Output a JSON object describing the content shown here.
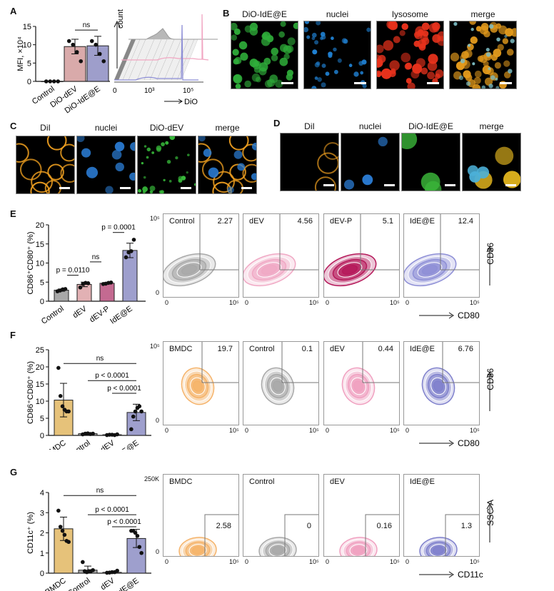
{
  "panels": {
    "A": {
      "letter": "A",
      "bar_chart": {
        "ylabel": "MFI, ×10⁴",
        "yticks": [
          "0",
          "5",
          "10",
          "15"
        ],
        "categories": [
          "Control",
          "DiO-dEV",
          "DiO-IdE@E"
        ],
        "sig": [
          "ns"
        ]
      },
      "histogram": {
        "ylabel": "count",
        "xlabel": "DiO",
        "xticks": [
          "0",
          "10³",
          "10⁵"
        ]
      }
    },
    "B": {
      "letter": "B",
      "titles": [
        "DiO-IdE@E",
        "nuclei",
        "lysosome",
        "merge"
      ]
    },
    "C": {
      "letter": "C",
      "titles": [
        "DiI",
        "nuclei",
        "DiO-dEV",
        "merge"
      ]
    },
    "D": {
      "letter": "D",
      "titles": [
        "DiI",
        "nuclei",
        "DiO-IdE@E",
        "merge"
      ]
    },
    "E": {
      "letter": "E",
      "ylabel": "CD86⁺CD80⁺ (%)",
      "yticks": [
        "0",
        "5",
        "10",
        "15",
        "20"
      ],
      "categories": [
        "Control",
        "dEV",
        "dEV-P",
        "IdE@E"
      ],
      "sig": [
        "p = 0.0110",
        "ns",
        "p = 0.0001"
      ],
      "flow": {
        "yaxis": "CD86",
        "xaxis": "CD80",
        "ytop": "10⁵",
        "ybottom": "0",
        "xleft": "0",
        "xright": "10⁵",
        "plots": [
          {
            "name": "Control",
            "value": "2.27"
          },
          {
            "name": "dEV",
            "value": "4.56"
          },
          {
            "name": "dEV-P",
            "value": "5.1"
          },
          {
            "name": "IdE@E",
            "value": "12.4"
          }
        ]
      }
    },
    "F": {
      "letter": "F",
      "ylabel": "CD86⁺CD80⁺ (%)",
      "yticks": [
        "0",
        "5",
        "10",
        "15",
        "20",
        "25"
      ],
      "categories": [
        "BMDC",
        "Control",
        "dEV",
        "IdE@E"
      ],
      "sig": [
        "ns",
        "p < 0.0001",
        "p < 0.0001"
      ],
      "flow": {
        "yaxis": "CD86",
        "xaxis": "CD80",
        "ytop": "10⁵",
        "ybottom": "0",
        "xleft": "0",
        "xright": "10⁵",
        "plots": [
          {
            "name": "BMDC",
            "value": "19.7"
          },
          {
            "name": "Control",
            "value": "0.1"
          },
          {
            "name": "dEV",
            "value": "0.44"
          },
          {
            "name": "IdE@E",
            "value": "6.76"
          }
        ]
      }
    },
    "G": {
      "letter": "G",
      "ylabel": "CD11c⁺ (%)",
      "yticks": [
        "0",
        "1",
        "2",
        "3",
        "4"
      ],
      "categories": [
        "BMDC",
        "Control",
        "dEV",
        "IdE@E"
      ],
      "sig": [
        "ns",
        "p < 0.0001",
        "p < 0.0001"
      ],
      "flow": {
        "yaxis": "SSC-A",
        "xaxis": "CD11c",
        "ytop": "250K",
        "ybottom": "0",
        "xleft": "0",
        "xright": "10⁵",
        "plots": [
          {
            "name": "BMDC",
            "value": "2.58"
          },
          {
            "name": "Control",
            "value": "0"
          },
          {
            "name": "dEV",
            "value": "0.16"
          },
          {
            "name": "IdE@E",
            "value": "1.3"
          }
        ]
      }
    }
  },
  "colors": {
    "gray": "#a8a8a8",
    "dEV_pink": "#e2b1b4",
    "dEVP": "#c46a91",
    "IdE": "#9e9fcd",
    "BMDC": "#e6c27a",
    "A_dEV": "#d9aaaa",
    "A_IdE": "#9e9ecb"
  },
  "chart_data": [
    {
      "type": "bar",
      "title": "A",
      "ylabel": "MFI, ×10⁴",
      "ylim": [
        0,
        15
      ],
      "categories": [
        "Control",
        "DiO-dEV",
        "DiO-IdE@E"
      ],
      "values": [
        0,
        9.5,
        9.7
      ],
      "errors": [
        0,
        2,
        2.6
      ],
      "points": [
        [
          0,
          0,
          0,
          0
        ],
        [
          11,
          10,
          8,
          5.5
        ],
        [
          11,
          10,
          7.5,
          5.5
        ]
      ]
    },
    {
      "type": "bar",
      "title": "E",
      "ylabel": "CD86⁺CD80⁺ (%)",
      "ylim": [
        0,
        20
      ],
      "categories": [
        "Control",
        "dEV",
        "dEV-P",
        "IdE@E"
      ],
      "values": [
        2.9,
        4.4,
        4.7,
        13.3
      ],
      "errors": [
        0.3,
        0.6,
        0.2,
        1.9
      ],
      "points": [
        [
          2.6,
          2.8,
          3.1,
          3.2
        ],
        [
          3.6,
          4.5,
          4.8,
          4.7
        ],
        [
          4.5,
          4.6,
          4.8,
          4.9
        ],
        [
          11.5,
          12.8,
          13.1,
          16.1
        ]
      ]
    },
    {
      "type": "bar",
      "title": "F",
      "ylabel": "CD86⁺CD80⁺ (%)",
      "ylim": [
        0,
        25
      ],
      "categories": [
        "BMDC",
        "Control",
        "dEV",
        "IdE@E"
      ],
      "values": [
        10.3,
        0.5,
        0.2,
        6.7
      ],
      "errors": [
        4.9,
        0.2,
        0.1,
        2.4
      ],
      "points": [
        [
          19.7,
          11.5,
          8.5,
          7.5,
          7,
          7
        ],
        [
          0.3,
          0.5,
          0.6,
          0.4,
          0.5
        ],
        [
          0.1,
          0.2,
          0.2,
          0.1,
          0.3
        ],
        [
          1.8,
          5.5,
          7,
          8,
          8.5,
          7
        ]
      ]
    },
    {
      "type": "bar",
      "title": "G",
      "ylabel": "CD11c⁺ (%)",
      "ylim": [
        0,
        4
      ],
      "categories": [
        "BMDC",
        "Control",
        "dEV",
        "IdE@E"
      ],
      "values": [
        2.2,
        0.15,
        0.04,
        1.72
      ],
      "errors": [
        0.58,
        0.2,
        0.03,
        0.45
      ],
      "points": [
        [
          3.1,
          2.3,
          2.1,
          1.9,
          1.6,
          1.55
        ],
        [
          0.55,
          0.1,
          0.05,
          0.1,
          0.1,
          0.15
        ],
        [
          0.02,
          0.03,
          0.05,
          0.05,
          0.12
        ],
        [
          2.1,
          2.1,
          2.0,
          1.85,
          1.3,
          1.0
        ]
      ]
    }
  ]
}
